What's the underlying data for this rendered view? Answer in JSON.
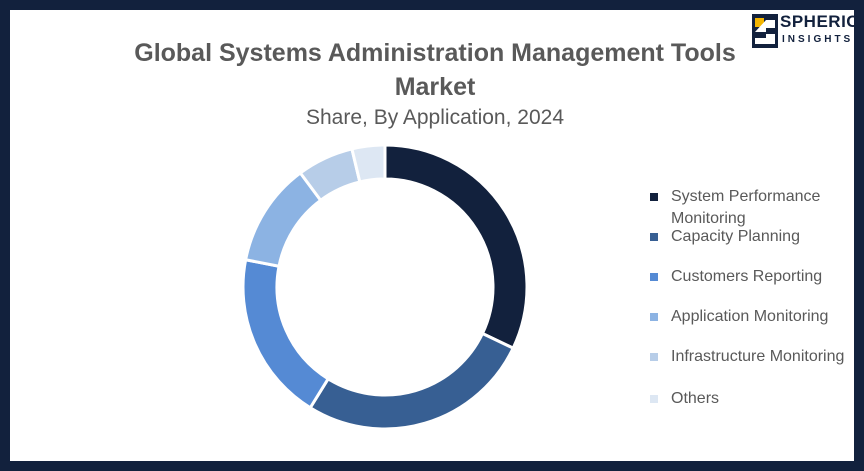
{
  "logo": {
    "brand": "SPHERICAL",
    "sub": "INSIGHTS"
  },
  "chart_data": {
    "type": "pie",
    "title": "Global Systems Administration Management Tools Market",
    "subtitle": "Share, By Application, 2024",
    "legend_position": "right",
    "categories": [
      "System Performance Monitoring",
      "Capacity Planning",
      "Customers Reporting",
      "Application Monitoring",
      "Infrastructure Monitoring",
      "Others"
    ],
    "values": [
      30,
      25,
      18,
      11,
      6,
      3.5
    ],
    "colors": [
      "#12213d",
      "#375f93",
      "#558ad4",
      "#8cb3e3",
      "#b7cde8",
      "#dde7f3"
    ]
  }
}
